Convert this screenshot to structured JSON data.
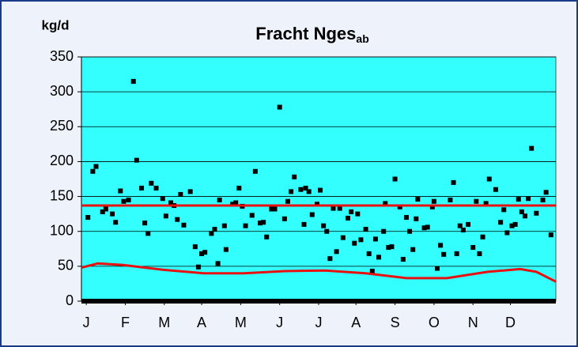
{
  "chart_data": {
    "type": "scatter",
    "title": "Fracht Nges",
    "title_subscript": "ab",
    "y_label": "kg/d",
    "xlim": [
      0,
      292
    ],
    "xticks": [
      {
        "value": 3,
        "label": "J"
      },
      {
        "value": 27,
        "label": "F"
      },
      {
        "value": 51,
        "label": "M"
      },
      {
        "value": 74,
        "label": "A"
      },
      {
        "value": 98,
        "label": "M"
      },
      {
        "value": 122,
        "label": "J"
      },
      {
        "value": 146,
        "label": "J"
      },
      {
        "value": 169,
        "label": "A"
      },
      {
        "value": 193,
        "label": "S"
      },
      {
        "value": 217,
        "label": "O"
      },
      {
        "value": 241,
        "label": "N"
      },
      {
        "value": 264,
        "label": "D"
      }
    ],
    "ylim": [
      0,
      350
    ],
    "yticks": [
      0,
      50,
      100,
      150,
      200,
      250,
      300,
      350
    ],
    "grid": true,
    "background": "#33ffff",
    "series": [
      {
        "mode": "markers",
        "color": "#000000",
        "x": [
          4,
          7,
          9,
          13,
          15,
          19,
          21,
          24,
          26,
          29,
          32,
          34,
          37,
          39,
          41,
          43,
          46,
          50,
          52,
          55,
          57,
          59,
          61,
          63,
          67,
          70,
          72,
          74,
          76,
          80,
          82,
          84,
          85,
          88,
          89,
          93,
          95,
          97,
          99,
          101,
          105,
          107,
          110,
          112,
          114,
          117,
          119,
          122,
          125,
          127,
          129,
          131,
          135,
          137,
          138,
          140,
          142,
          145,
          147,
          149,
          151,
          153,
          155,
          157,
          159,
          161,
          164,
          166,
          168,
          170,
          172,
          175,
          177,
          179,
          181,
          183,
          186,
          187,
          189,
          191,
          193,
          196,
          198,
          200,
          202,
          204,
          206,
          207,
          211,
          213,
          216,
          217,
          219,
          221,
          223,
          227,
          229,
          231,
          233,
          235,
          238,
          241,
          243,
          245,
          247,
          249,
          251,
          255,
          258,
          260,
          262,
          265,
          267,
          269,
          271,
          273,
          275,
          277,
          280,
          284,
          286,
          289
        ],
        "values": [
          120,
          186,
          193,
          128,
          132,
          125,
          113,
          158,
          143,
          145,
          315,
          202,
          162,
          112,
          97,
          169,
          162,
          147,
          122,
          141,
          137,
          117,
          153,
          109,
          157,
          78,
          49,
          68,
          70,
          97,
          103,
          54,
          145,
          108,
          74,
          139,
          141,
          162,
          136,
          108,
          123,
          186,
          112,
          113,
          92,
          132,
          132,
          278,
          118,
          143,
          157,
          178,
          160,
          110,
          162,
          157,
          124,
          139,
          159,
          108,
          100,
          61,
          133,
          71,
          133,
          91,
          119,
          128,
          83,
          125,
          88,
          103,
          68,
          43,
          89,
          63,
          100,
          140,
          77,
          78,
          175,
          135,
          60,
          120,
          100,
          74,
          118,
          146,
          105,
          106,
          135,
          143,
          47,
          80,
          67,
          145,
          170,
          68,
          108,
          102,
          110,
          77,
          143,
          68,
          92,
          140,
          175,
          160,
          113,
          131,
          98,
          108,
          110,
          146,
          128,
          122,
          147,
          219,
          126,
          145,
          156,
          95
        ]
      },
      {
        "mode": "line",
        "color": "#e81010",
        "x": [
          0,
          292
        ],
        "values": [
          137,
          137
        ]
      },
      {
        "mode": "line",
        "color": "#e81010",
        "x": [
          0,
          10,
          25,
          50,
          75,
          100,
          125,
          150,
          175,
          200,
          225,
          250,
          270,
          280,
          292
        ],
        "values": [
          48,
          54,
          52,
          45,
          40,
          40,
          43,
          44,
          40,
          33,
          33,
          42,
          46,
          42,
          28
        ]
      }
    ]
  }
}
